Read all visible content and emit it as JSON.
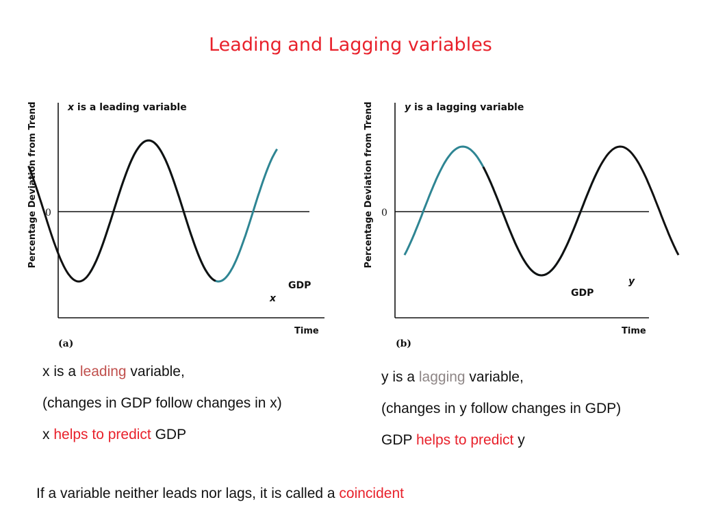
{
  "title": "Leading and Lagging variables",
  "colors": {
    "gdp": "#2e8593",
    "variable": "#111111",
    "accent": "#e8212b"
  },
  "chart_data": [
    {
      "type": "line",
      "panel_label": "(a)",
      "title_var": "x",
      "title_rest": " is a leading variable",
      "xlabel": "Time",
      "ylabel": "Percentage Deviation from Trend",
      "zero_label": "0",
      "series": [
        {
          "name": "GDP",
          "label": "GDP",
          "color": "#2e8593",
          "phase": 0.0,
          "style": "bold"
        },
        {
          "name": "x",
          "label": "x",
          "color": "#111111",
          "phase": -0.44,
          "style": "italic"
        }
      ]
    },
    {
      "type": "line",
      "panel_label": "(b)",
      "title_var": "y",
      "title_rest": " is a lagging variable",
      "xlabel": "Time",
      "ylabel": "Percentage Deviation from Trend",
      "zero_label": "0",
      "series": [
        {
          "name": "GDP",
          "label": "GDP",
          "color": "#2e8593",
          "phase": 0.0,
          "style": "bold"
        },
        {
          "name": "y",
          "label": "y",
          "color": "#111111",
          "phase": 0.5,
          "style": "italic"
        }
      ]
    }
  ],
  "left_text": {
    "line1": {
      "a": "x is a ",
      "b": "leading",
      "c": " variable,"
    },
    "line2": "(changes in GDP follow changes in x)",
    "line3": {
      "a": "x ",
      "b": "helps to predict",
      "c": " GDP"
    }
  },
  "right_text": {
    "line1": {
      "a": "y is a ",
      "b": "lagging",
      "c": " variable,"
    },
    "line2": "(changes in y follow changes in GDP)",
    "line3": {
      "a": "GDP ",
      "b": "helps to predict",
      "c": " y"
    }
  },
  "footer": {
    "a": "If a variable neither leads nor lags, it is called a ",
    "b": "coincident"
  }
}
